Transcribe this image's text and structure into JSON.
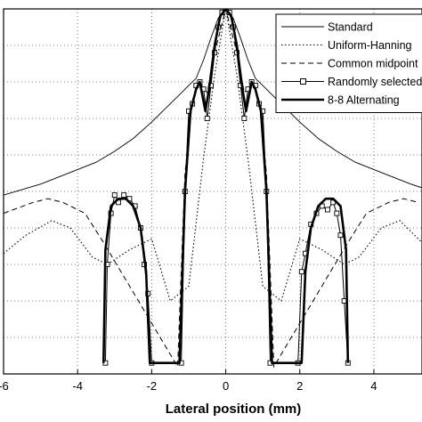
{
  "chart_data": {
    "type": "line",
    "title": "",
    "xlabel": "Lateral position (mm)",
    "ylabel": "",
    "xlim": [
      -6,
      5.3
    ],
    "ylim": [
      0,
      1
    ],
    "x_ticks": [
      -6,
      -4,
      -2,
      0,
      2,
      4
    ],
    "x_tick_labels": [
      "-6",
      "-4",
      "-2",
      "0",
      "2",
      "4"
    ],
    "grid": true,
    "legend_position": "top-right",
    "series": [
      {
        "name": "Standard",
        "style": "solid-thin",
        "x": [
          -6,
          -5,
          -4,
          -3.5,
          -3,
          -2.5,
          -2,
          -1.6,
          -1.3,
          -1.0,
          -0.8,
          -0.6,
          -0.4,
          -0.2,
          0,
          0.2,
          0.4,
          0.6,
          0.8,
          1.0,
          1.3,
          1.6,
          2,
          2.5,
          3,
          3.5,
          4,
          5,
          5.3
        ],
        "y": [
          0.49,
          0.52,
          0.56,
          0.58,
          0.61,
          0.645,
          0.69,
          0.73,
          0.76,
          0.79,
          0.81,
          0.86,
          0.92,
          0.975,
          1.0,
          0.975,
          0.92,
          0.86,
          0.81,
          0.79,
          0.76,
          0.73,
          0.69,
          0.645,
          0.61,
          0.58,
          0.56,
          0.52,
          0.51
        ]
      },
      {
        "name": "Uniform-Hanning",
        "style": "dotted",
        "x": [
          -6,
          -5.4,
          -4.7,
          -4.2,
          -3.6,
          -3.2,
          -2.6,
          -2.0,
          -1.5,
          -1.0,
          -0.6,
          -0.3,
          0,
          0.3,
          0.6,
          1.0,
          1.5,
          2.0,
          2.6,
          3.2,
          3.6,
          4.2,
          4.7,
          5.3
        ],
        "y": [
          0.33,
          0.38,
          0.42,
          0.4,
          0.32,
          0.3,
          0.34,
          0.37,
          0.2,
          0.24,
          0.59,
          0.82,
          1.0,
          0.82,
          0.59,
          0.24,
          0.2,
          0.37,
          0.34,
          0.3,
          0.32,
          0.4,
          0.42,
          0.36
        ]
      },
      {
        "name": "Common midpoint",
        "style": "dashed",
        "x": [
          -6,
          -5.2,
          -4.8,
          -4.4,
          -3.8,
          -3.3,
          -1.3,
          -1.1,
          -0.9,
          -0.7,
          -0.5,
          -0.3,
          0,
          0.3,
          0.5,
          0.7,
          0.9,
          1.1,
          1.3,
          3.3,
          3.8,
          4.4,
          4.8,
          5.2
        ],
        "y": [
          0.44,
          0.47,
          0.48,
          0.47,
          0.44,
          0.36,
          0.02,
          0.55,
          0.75,
          0.8,
          0.77,
          0.88,
          1.0,
          0.88,
          0.77,
          0.8,
          0.75,
          0.55,
          0.02,
          0.36,
          0.44,
          0.47,
          0.48,
          0.47
        ]
      },
      {
        "name": "Randomly selected",
        "style": "solid-square-markers",
        "x": [
          -3.25,
          -3.2,
          -3.1,
          -3.0,
          -2.9,
          -2.75,
          -2.6,
          -2.45,
          -2.3,
          -2.2,
          -2.1,
          -2.0,
          -1.2,
          -1.1,
          -1.0,
          -0.9,
          -0.8,
          -0.7,
          -0.6,
          -0.5,
          -0.4,
          -0.3,
          -0.2,
          -0.1,
          0,
          0.1,
          0.2,
          0.3,
          0.4,
          0.5,
          0.6,
          0.7,
          0.8,
          0.9,
          1.0,
          1.1,
          1.2,
          1.95,
          2.05,
          2.15,
          2.3,
          2.45,
          2.6,
          2.75,
          2.9,
          3.0,
          3.1,
          3.2,
          3.3
        ],
        "y": [
          0.03,
          0.3,
          0.44,
          0.49,
          0.47,
          0.49,
          0.48,
          0.46,
          0.4,
          0.3,
          0.22,
          0.03,
          0.03,
          0.5,
          0.72,
          0.74,
          0.79,
          0.8,
          0.78,
          0.7,
          0.79,
          0.88,
          0.95,
          0.99,
          1.0,
          0.99,
          0.95,
          0.88,
          0.79,
          0.7,
          0.78,
          0.8,
          0.79,
          0.74,
          0.72,
          0.5,
          0.03,
          0.03,
          0.28,
          0.33,
          0.41,
          0.44,
          0.46,
          0.45,
          0.47,
          0.44,
          0.38,
          0.2,
          0.03
        ]
      },
      {
        "name": "8-8 Alternating",
        "style": "solid-thick",
        "x": [
          -3.3,
          -3.25,
          -3.1,
          -2.9,
          -2.7,
          -2.5,
          -2.3,
          -2.15,
          -2.05,
          -1.25,
          -1.1,
          -0.95,
          -0.8,
          -0.7,
          -0.55,
          -0.45,
          -0.3,
          -0.15,
          0,
          0.15,
          0.3,
          0.45,
          0.55,
          0.7,
          0.8,
          0.95,
          1.1,
          1.25,
          2.05,
          2.15,
          2.3,
          2.5,
          2.7,
          2.9,
          3.1,
          3.25,
          3.3
        ],
        "y": [
          0.03,
          0.34,
          0.46,
          0.48,
          0.48,
          0.46,
          0.4,
          0.28,
          0.03,
          0.03,
          0.5,
          0.72,
          0.78,
          0.8,
          0.72,
          0.78,
          0.9,
          0.98,
          1.0,
          0.98,
          0.9,
          0.78,
          0.72,
          0.8,
          0.78,
          0.72,
          0.5,
          0.03,
          0.03,
          0.28,
          0.4,
          0.46,
          0.48,
          0.48,
          0.46,
          0.34,
          0.03
        ]
      }
    ]
  }
}
